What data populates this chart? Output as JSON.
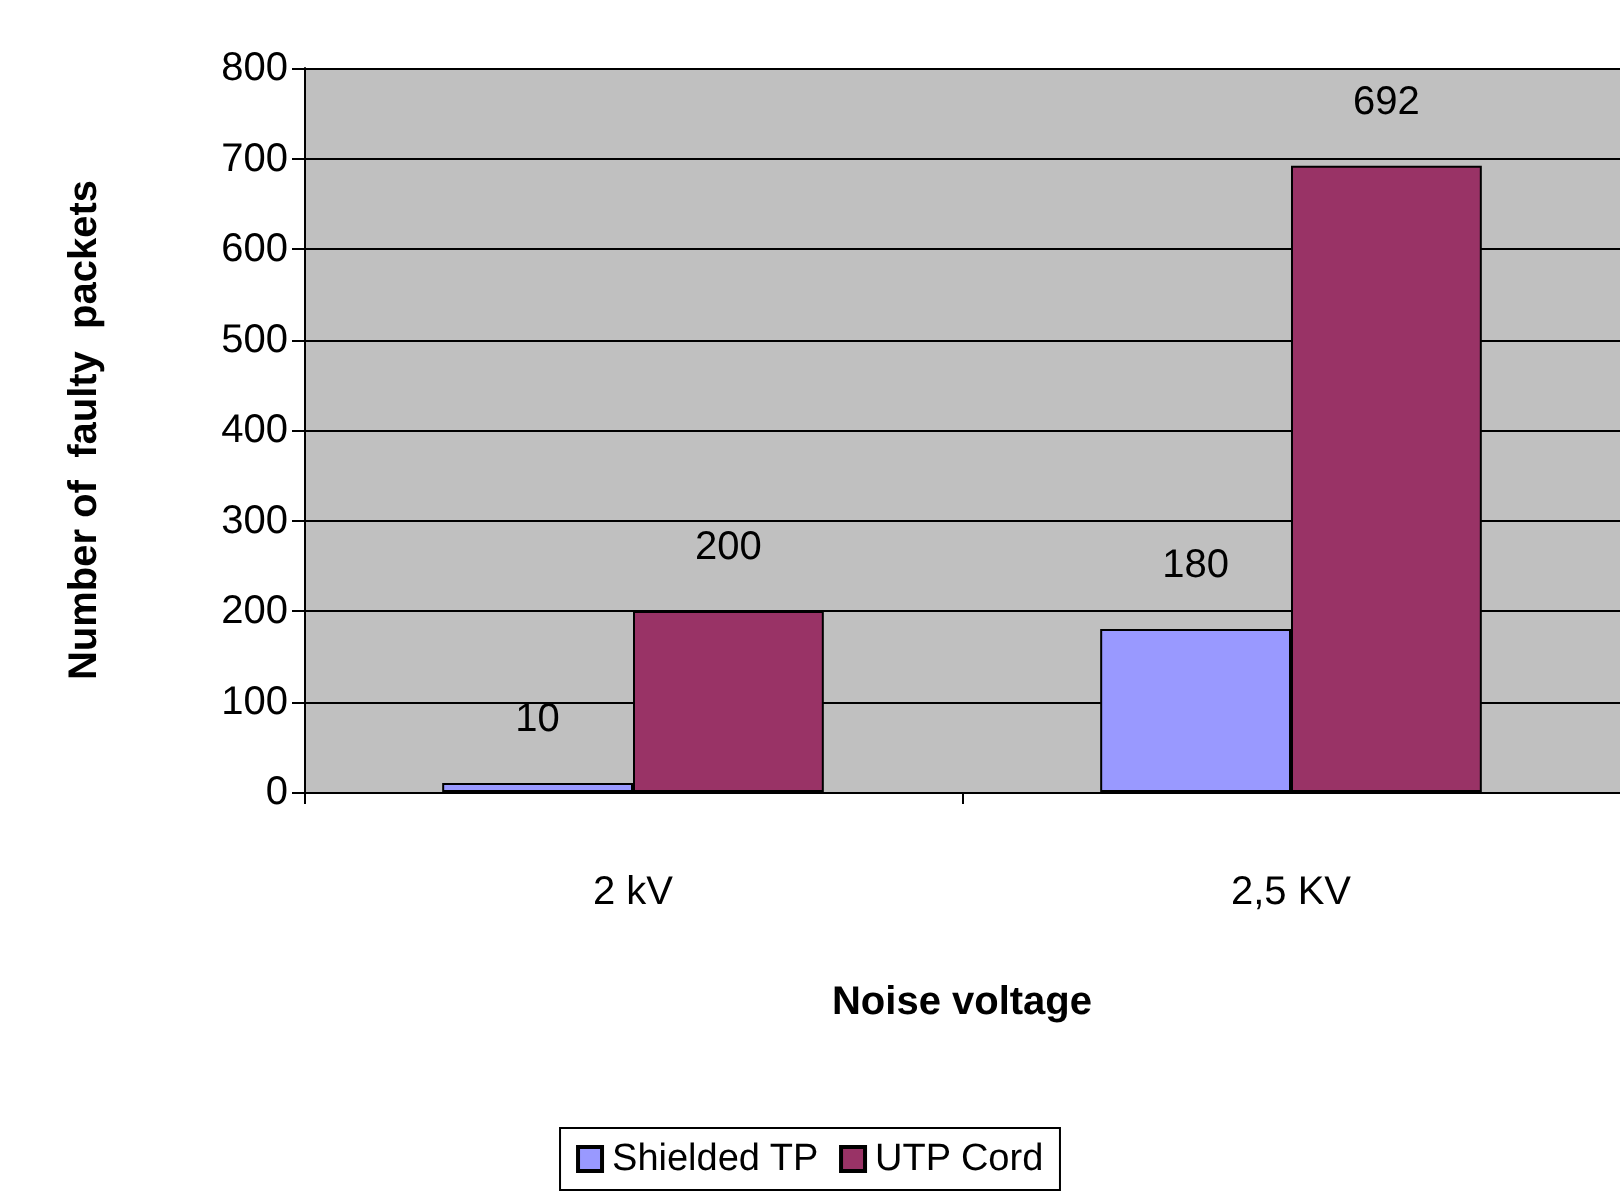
{
  "chart_data": {
    "type": "bar",
    "xlabel": "Noise voltage",
    "ylabel": "Number of  faulty  packets",
    "categories": [
      "2 kV",
      "2,5 KV"
    ],
    "series": [
      {
        "name": "Shielded TP",
        "color": "#9999ff",
        "values": [
          10,
          180
        ]
      },
      {
        "name": "UTP Cord",
        "color": "#993366",
        "values": [
          200,
          692
        ]
      }
    ],
    "ylim": [
      0,
      800
    ],
    "yticks": [
      0,
      100,
      200,
      300,
      400,
      500,
      600,
      700,
      800
    ],
    "grid": "y",
    "legend": "bottom",
    "data_labels": true
  }
}
